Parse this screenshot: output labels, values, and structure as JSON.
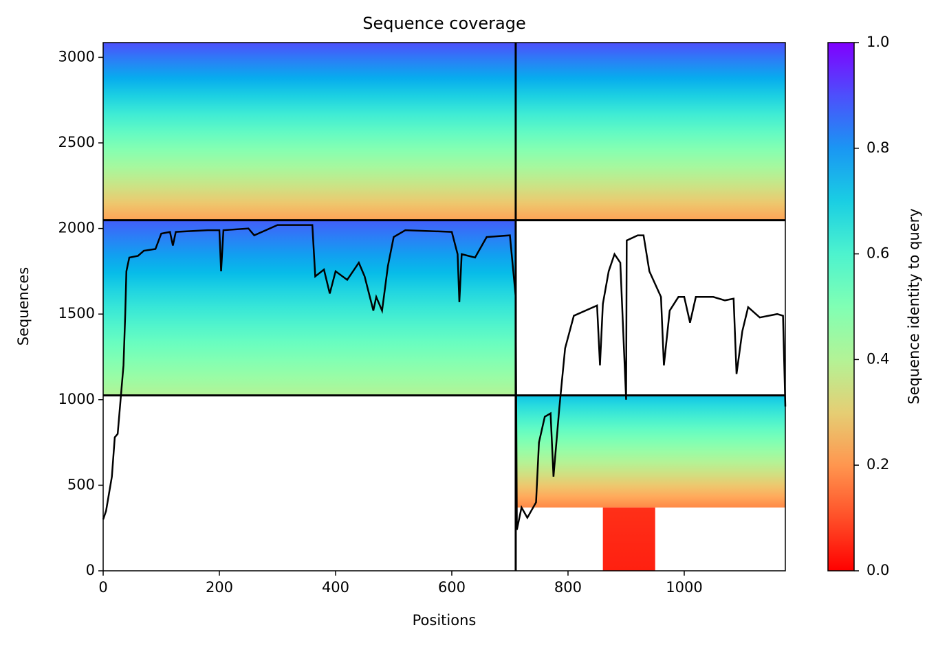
{
  "chart_data": {
    "type": "coverage",
    "title": "Sequence coverage",
    "x_label": "Positions",
    "y_label": "Sequences",
    "colorbar_label": "Sequence identity to query",
    "colormap": "rainbow_r",
    "xlim": [
      0,
      1174
    ],
    "ylim": [
      0,
      3086
    ],
    "xticks": [
      0,
      200,
      400,
      600,
      800,
      1000
    ],
    "yticks": [
      0,
      500,
      1000,
      1500,
      2000,
      2500,
      3000
    ],
    "clim": [
      0,
      1
    ],
    "cticks": [
      {
        "value": 0,
        "label": "0.0"
      },
      0.2,
      0.4,
      0.6,
      0.8,
      {
        "value": 1,
        "label": "1.0"
      }
    ],
    "blocks": [
      {
        "x": [
          0,
          710
        ],
        "y": [
          2048,
          3086
        ],
        "identity": [
          0.22,
          0.9
        ]
      },
      {
        "x": [
          710,
          1174
        ],
        "y": [
          2048,
          3086
        ],
        "identity": [
          0.22,
          0.9
        ]
      },
      {
        "x": [
          0,
          710
        ],
        "y": [
          1025,
          2048
        ],
        "identity": [
          0.4,
          0.88
        ]
      },
      {
        "x": [
          710,
          1174
        ],
        "y": [
          370,
          1025
        ],
        "identity": [
          0.18,
          0.72
        ]
      },
      {
        "x": [
          860,
          950
        ],
        "y": [
          0,
          370
        ],
        "identity": [
          0.04,
          0.06
        ]
      }
    ],
    "dividers": {
      "x": [
        710
      ],
      "y": [
        1025,
        2048
      ]
    },
    "coverage": {
      "x": [
        0,
        5,
        10,
        15,
        20,
        25,
        30,
        35,
        38,
        40,
        45,
        60,
        70,
        90,
        100,
        115,
        120,
        125,
        180,
        200,
        203,
        207,
        250,
        260,
        300,
        360,
        365,
        380,
        390,
        400,
        420,
        440,
        450,
        465,
        470,
        480,
        490,
        500,
        520,
        600,
        610,
        613,
        617,
        640,
        660,
        700,
        705,
        710,
        712,
        720,
        730,
        745,
        750,
        760,
        770,
        775,
        785,
        795,
        810,
        850,
        855,
        860,
        870,
        880,
        890,
        900,
        901,
        920,
        930,
        940,
        960,
        965,
        975,
        990,
        1000,
        1010,
        1020,
        1050,
        1070,
        1085,
        1090,
        1100,
        1110,
        1130,
        1160,
        1170,
        1174
      ],
      "y": [
        300,
        350,
        450,
        550,
        780,
        800,
        1000,
        1200,
        1500,
        1750,
        1830,
        1840,
        1870,
        1880,
        1970,
        1980,
        1900,
        1980,
        1990,
        1990,
        1750,
        1990,
        2000,
        1960,
        2020,
        2020,
        1720,
        1760,
        1620,
        1750,
        1700,
        1800,
        1720,
        1520,
        1600,
        1520,
        1780,
        1950,
        1990,
        1980,
        1850,
        1570,
        1850,
        1830,
        1950,
        1960,
        1780,
        1600,
        240,
        370,
        310,
        400,
        750,
        900,
        920,
        550,
        950,
        1300,
        1490,
        1550,
        1200,
        1560,
        1750,
        1850,
        1800,
        1000,
        1930,
        1960,
        1960,
        1750,
        1600,
        1200,
        1520,
        1600,
        1600,
        1450,
        1600,
        1600,
        1580,
        1590,
        1150,
        1400,
        1540,
        1480,
        1500,
        1490,
        960
      ]
    }
  }
}
